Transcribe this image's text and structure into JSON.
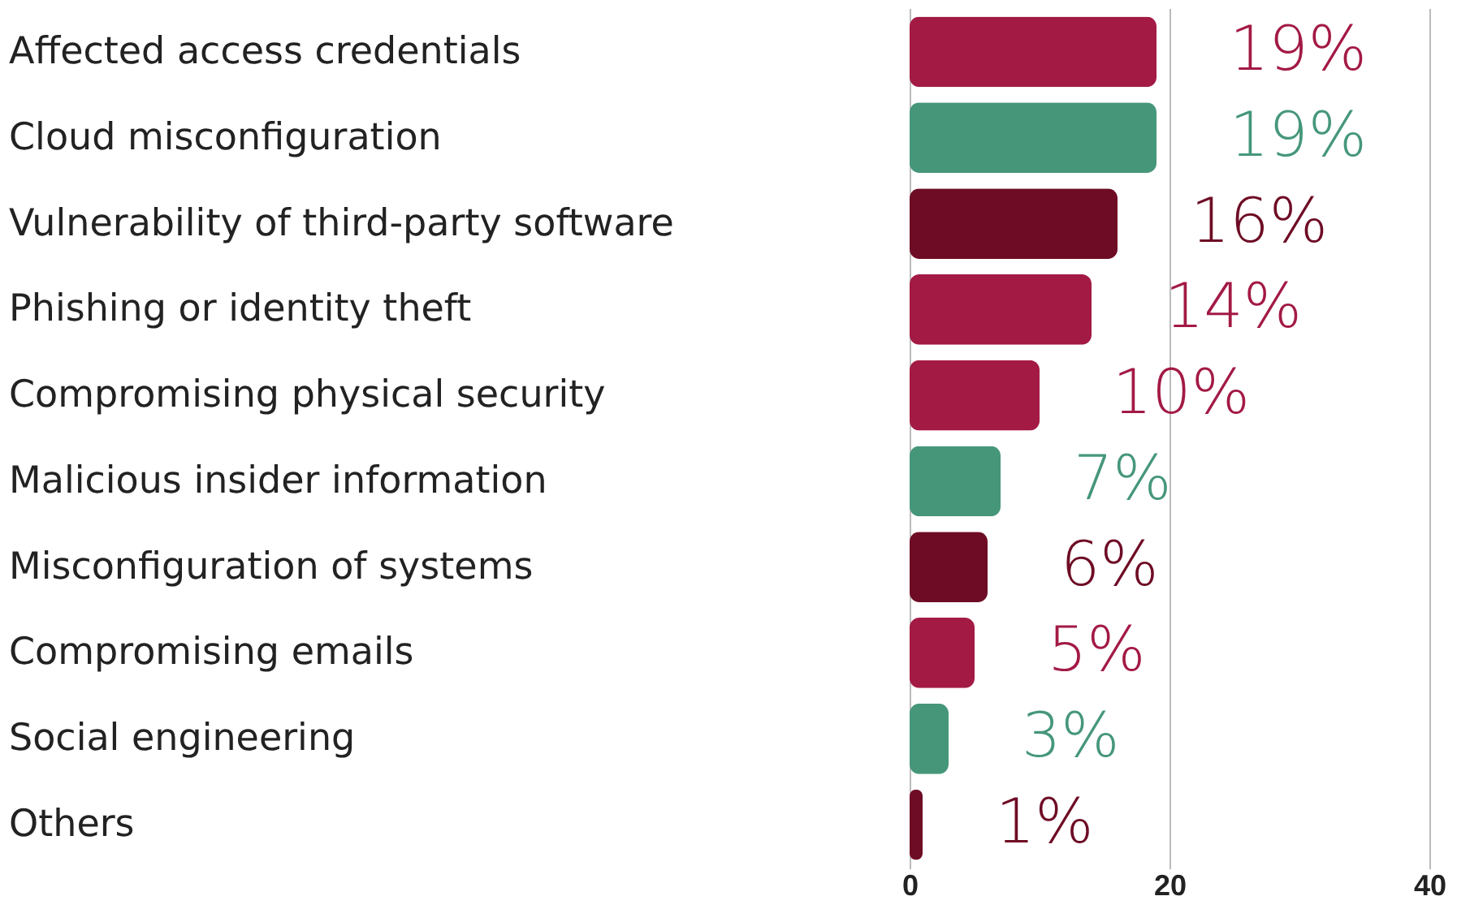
{
  "chart_data": {
    "type": "bar",
    "orientation": "horizontal",
    "categories": [
      "Affected access credentials",
      "Cloud misconfiguration",
      "Vulnerability of third-party software",
      "Phishing or identity theft",
      "Compromising physical security",
      "Malicious insider information",
      "Misconfiguration of systems",
      "Compromising emails",
      "Social engineering",
      "Others"
    ],
    "values": [
      19,
      19,
      16,
      14,
      10,
      7,
      6,
      5,
      3,
      1
    ],
    "colors": [
      "#a31a45",
      "#46977a",
      "#6e0c25",
      "#a31a45",
      "#a31a45",
      "#46977a",
      "#6e0c25",
      "#a31a45",
      "#46977a",
      "#6e0c25"
    ],
    "value_labels": [
      "19%",
      "19%",
      "16%",
      "14%",
      "10%",
      "7%",
      "6%",
      "5%",
      "3%",
      "1%"
    ],
    "xlim": [
      0,
      40
    ],
    "xticks": [
      0,
      20,
      40
    ],
    "grid": "x"
  }
}
